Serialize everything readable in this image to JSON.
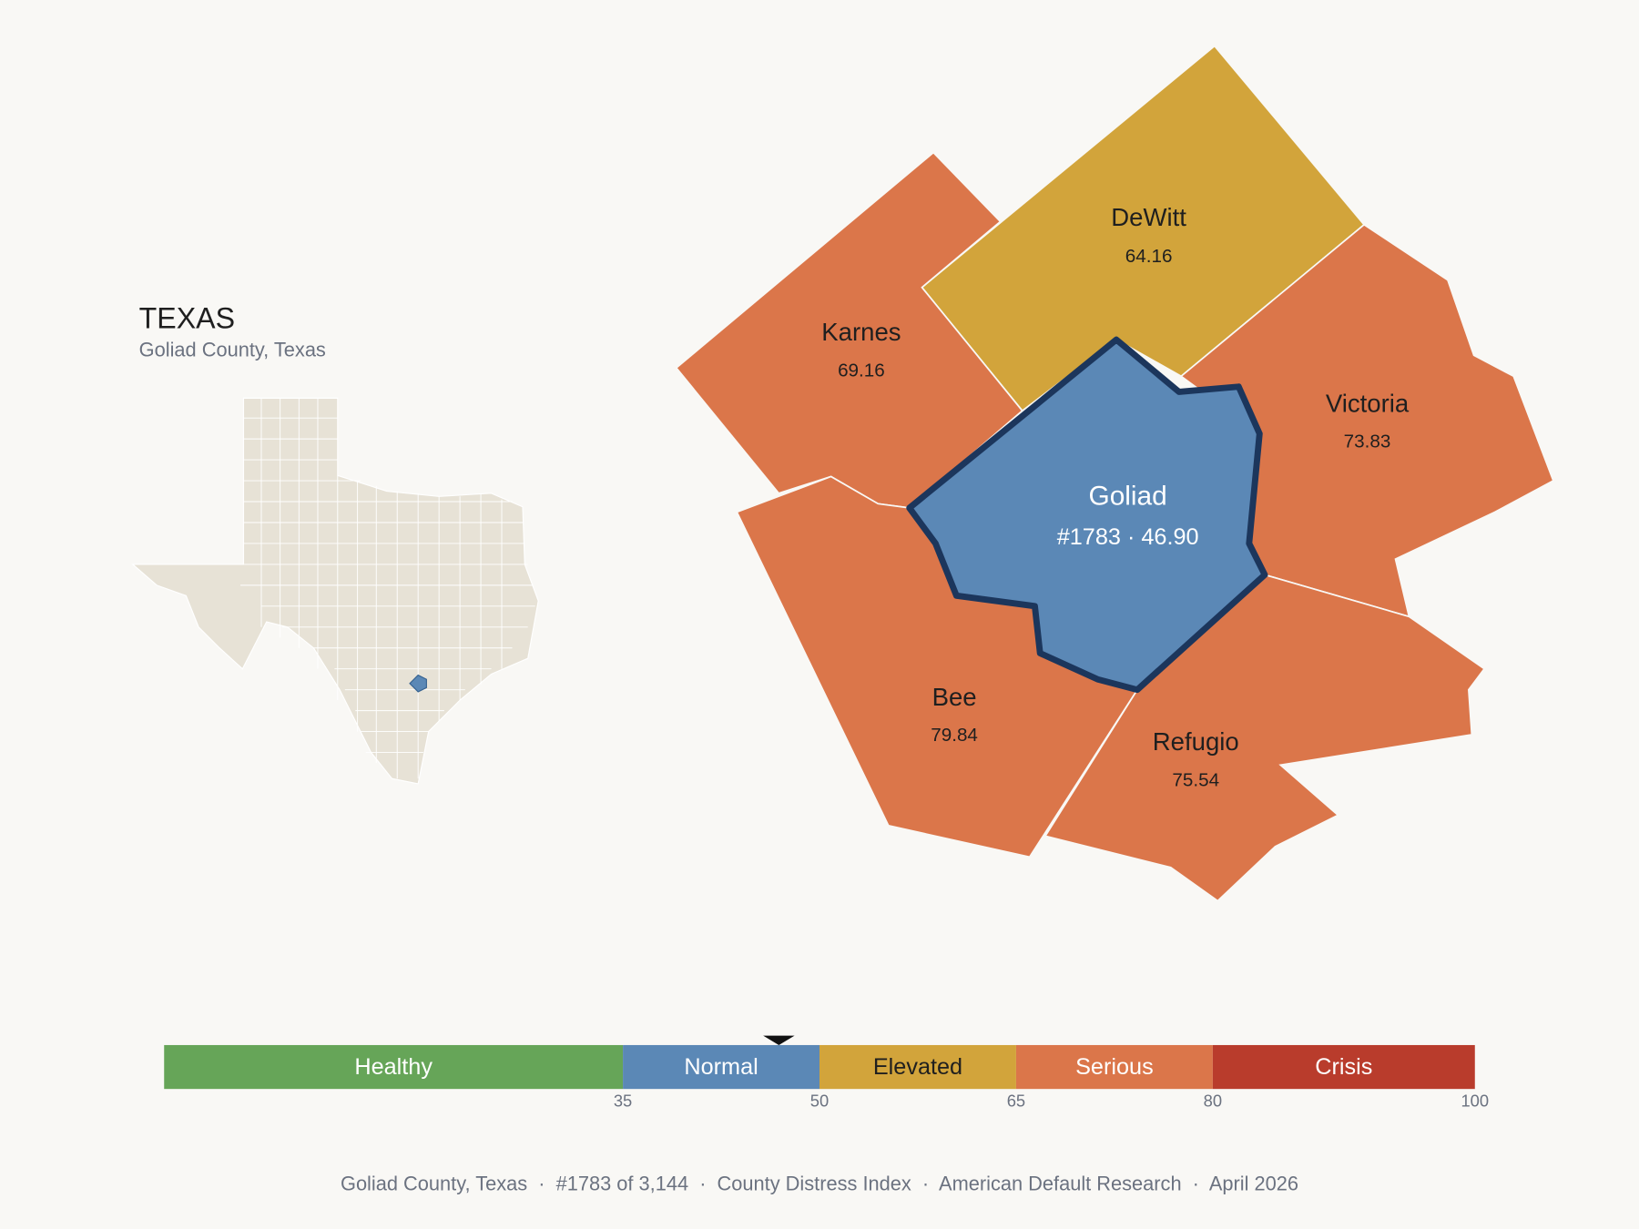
{
  "header": {
    "title": "TEXAS",
    "subtitle": "Goliad County, Texas"
  },
  "counties": [
    {
      "name": "DeWitt",
      "score": "64.16"
    },
    {
      "name": "Karnes",
      "score": "69.16"
    },
    {
      "name": "Victoria",
      "score": "73.83"
    },
    {
      "name": "Goliad",
      "score": "#1783 · 46.90"
    },
    {
      "name": "Bee",
      "score": "79.84"
    },
    {
      "name": "Refugio",
      "score": "75.54"
    }
  ],
  "scale": {
    "xlim": [
      0,
      100
    ],
    "ticks": [
      35,
      50,
      65,
      80,
      100
    ],
    "marker": 46.9,
    "bands": [
      {
        "label": "Healthy",
        "color": "#66a558"
      },
      {
        "label": "Normal",
        "color": "#5b88b6"
      },
      {
        "label": "Elevated",
        "color": "#d2a43b"
      },
      {
        "label": "Serious",
        "color": "#db764a"
      },
      {
        "label": "Crisis",
        "color": "#b93c2c"
      }
    ]
  },
  "footer": "Goliad County, Texas  ·  #1783 of 3,144  ·  County Distress Index  ·  American Default Research  ·  April 2026"
}
